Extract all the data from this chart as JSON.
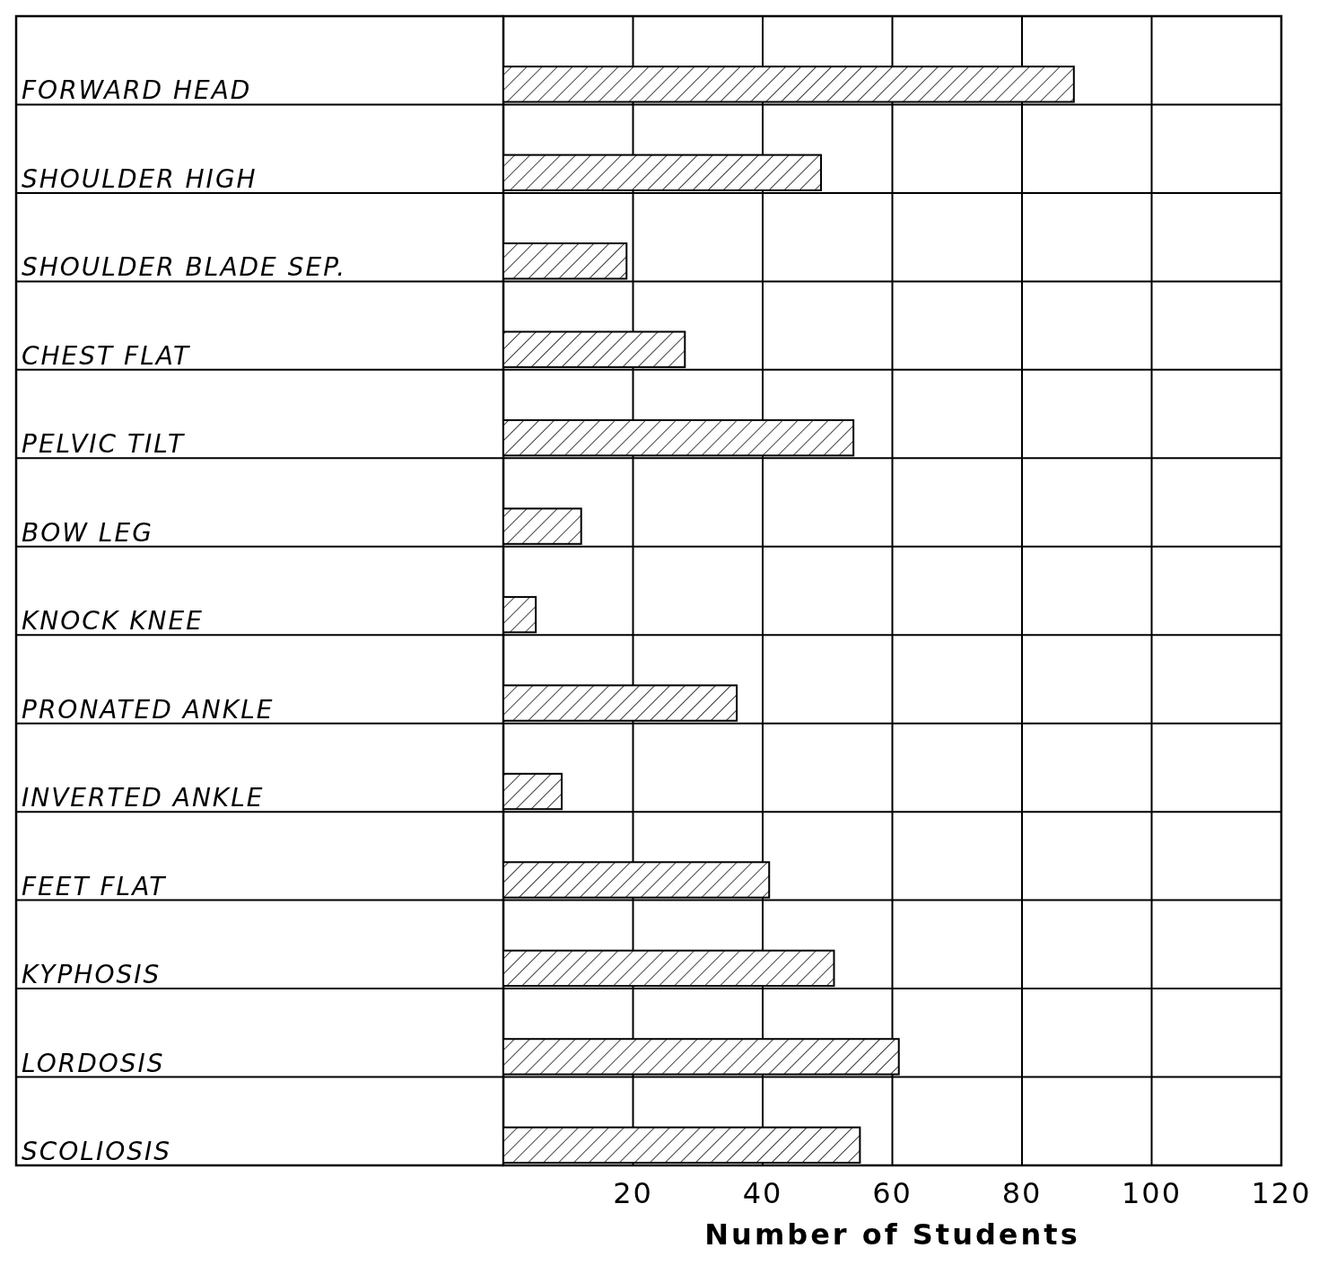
{
  "chart_data": {
    "type": "bar",
    "orientation": "horizontal",
    "xlabel": "Number of Students",
    "categories": [
      "FORWARD HEAD",
      "SHOULDER HIGH",
      "SHOULDER BLADE SEP.",
      "CHEST FLAT",
      "PELVIC TILT",
      "BOW LEG",
      "KNOCK KNEE",
      "PRONATED ANKLE",
      "INVERTED ANKLE",
      "FEET FLAT",
      "KYPHOSIS",
      "LORDOSIS",
      "SCOLIOSIS"
    ],
    "values": [
      88,
      49,
      19,
      28,
      54,
      12,
      5,
      36,
      9,
      41,
      51,
      61,
      55
    ],
    "color": "#000000",
    "xlim": [
      0,
      120
    ],
    "xticks": [
      {
        "value": 0,
        "label": null
      },
      20,
      40,
      60,
      80,
      100,
      120
    ],
    "grid": true
  }
}
